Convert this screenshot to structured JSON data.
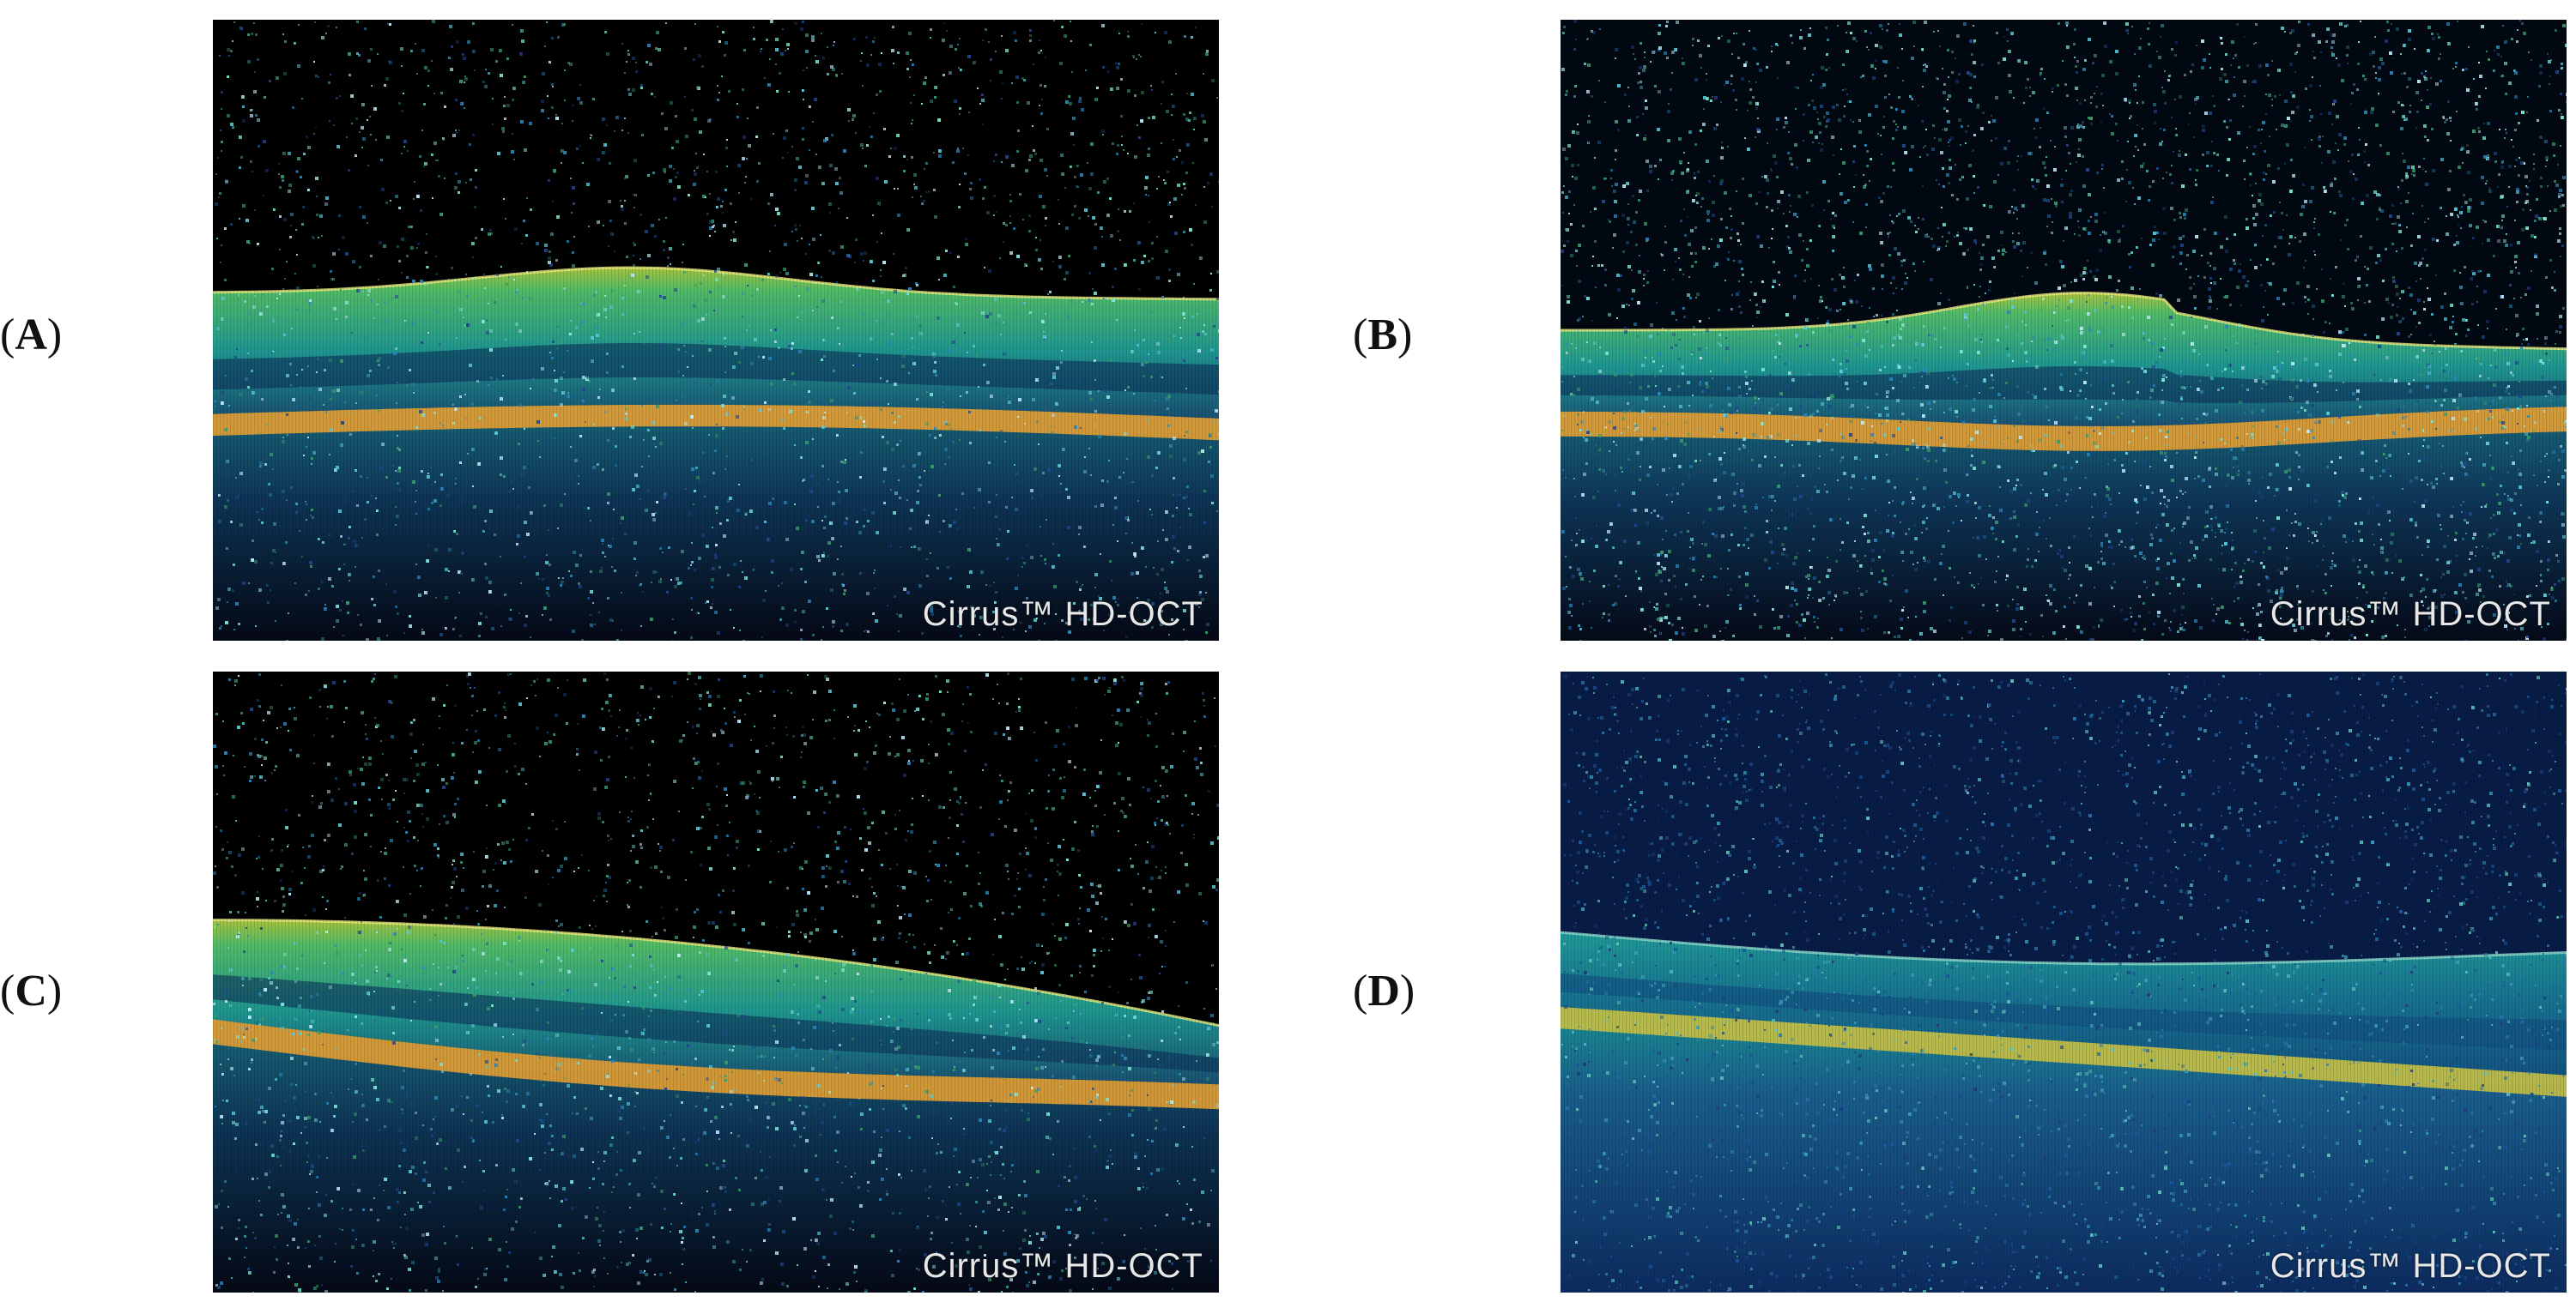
{
  "figure": {
    "panels": [
      {
        "id": "A",
        "label_open": "(",
        "label_letter": "A",
        "label_close": ")",
        "watermark": "Cirrus™ HD-OCT",
        "variant": "dark",
        "profile": "a"
      },
      {
        "id": "B",
        "label_open": "(",
        "label_letter": "B",
        "label_close": ")",
        "watermark": "Cirrus™ HD-OCT",
        "variant": "noisy",
        "profile": "b"
      },
      {
        "id": "C",
        "label_open": "(",
        "label_letter": "C",
        "label_close": ")",
        "watermark": "Cirrus™ HD-OCT",
        "variant": "dark",
        "profile": "c"
      },
      {
        "id": "D",
        "label_open": "(",
        "label_letter": "D",
        "label_close": ")",
        "watermark": "Cirrus™ HD-OCT",
        "variant": "blue",
        "profile": "d"
      }
    ]
  },
  "colors": {
    "background": "#ffffff",
    "label_text": "#111111",
    "scan_black": "#000000",
    "deep_blue": "#0a2a6a",
    "teal": "#1fa8a0",
    "green": "#58d070",
    "yellow_green": "#b8d840",
    "orange": "#e8a030",
    "watermark_text": "#e8e8e8"
  }
}
